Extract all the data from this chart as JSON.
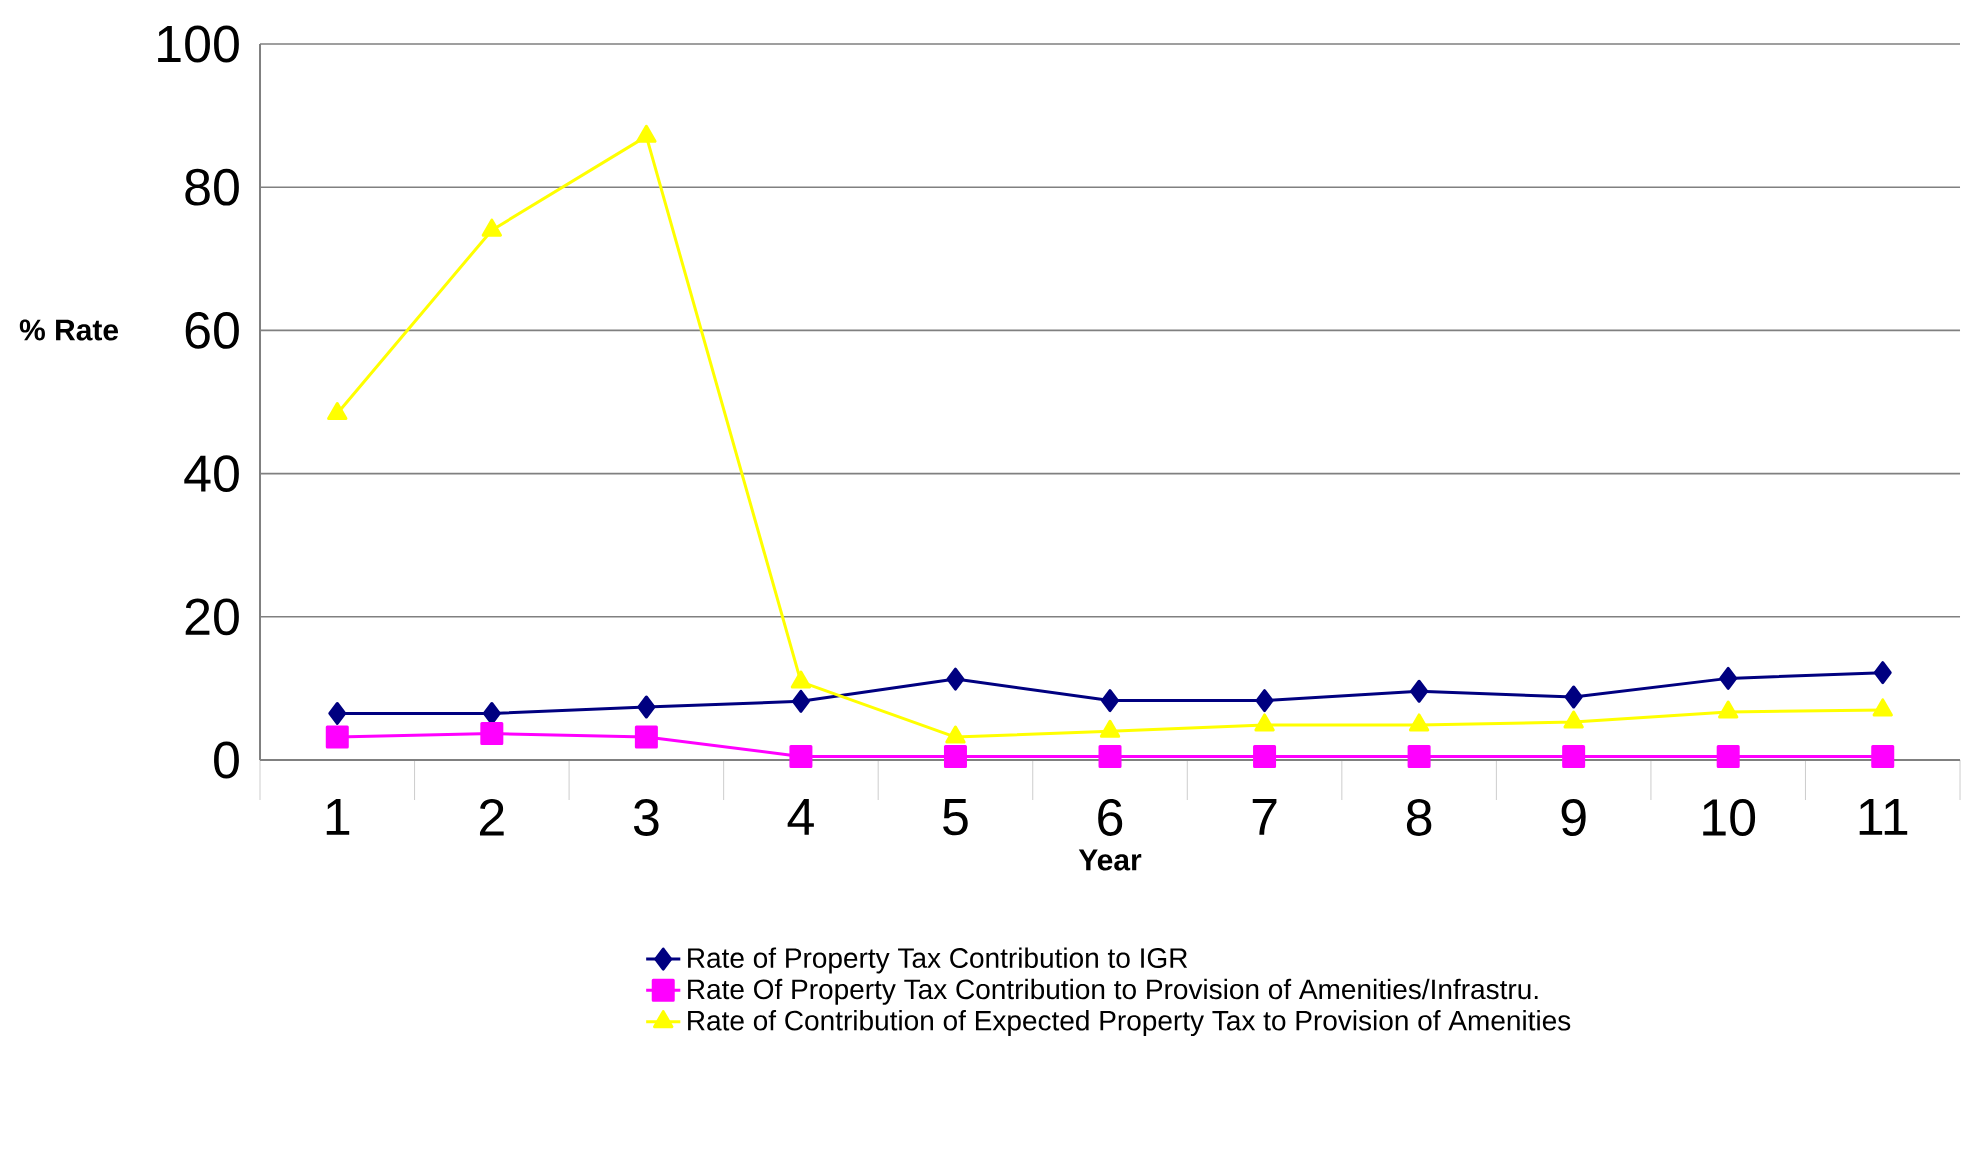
{
  "chart_data": {
    "type": "line",
    "xlabel": "Year",
    "ylabel": "% Rate",
    "categories": [
      "1",
      "2",
      "3",
      "4",
      "5",
      "6",
      "7",
      "8",
      "9",
      "10",
      "11"
    ],
    "series": [
      {
        "name": "Rate of Property Tax Contribution to IGR",
        "color": "#000080",
        "marker": "diamond",
        "values": [
          6.5,
          6.5,
          7.4,
          8.2,
          11.3,
          8.3,
          8.3,
          9.6,
          8.8,
          11.4,
          12.2
        ]
      },
      {
        "name": "Rate Of Property Tax Contribution to Provision of Amenities/Infrastru.",
        "color": "#ff00ff",
        "marker": "square",
        "values": [
          3.2,
          3.7,
          3.2,
          0.5,
          0.5,
          0.5,
          0.5,
          0.5,
          0.5,
          0.5,
          0.5
        ]
      },
      {
        "name": "Rate of Contribution of Expected Property Tax to Provision of Amenities",
        "color": "#ffff00",
        "marker": "triangle",
        "values": [
          48.4,
          74,
          87.1,
          10.9,
          3.2,
          4.0,
          4.9,
          4.9,
          5.3,
          6.7,
          7.0
        ]
      }
    ],
    "ylim": [
      0,
      100
    ],
    "yticks": [
      0,
      20,
      40,
      60,
      80,
      100
    ],
    "grid": "y",
    "legend": "bottom"
  }
}
